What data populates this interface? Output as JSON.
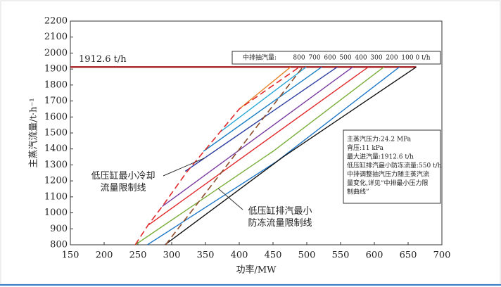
{
  "chart_data": {
    "type": "line",
    "x_label": "功率/MW",
    "y_label": "主蒸汽流量/t·h⁻¹",
    "xlim": [
      150,
      700
    ],
    "xticks": [
      150,
      200,
      250,
      300,
      350,
      400,
      450,
      500,
      550,
      600,
      650,
      700
    ],
    "ylim": [
      800,
      2200
    ],
    "yticks": [
      800,
      900,
      1000,
      1100,
      1200,
      1300,
      1400,
      1500,
      1600,
      1700,
      1800,
      1900,
      2000,
      2100,
      2200
    ],
    "max_flow": 1912.6,
    "max_flow_label": "1912.6 t/h",
    "max_flow_color": "#a01818",
    "legend_title": "中排抽汽量:",
    "series": [
      {
        "name": "800",
        "color": "#e8862a",
        "x": [
          400,
          476
        ],
        "values": [
          1650,
          1912.6
        ]
      },
      {
        "name": "700",
        "color": "#2aa7d8",
        "x": [
          373,
          499
        ],
        "values": [
          1510,
          1912.6
        ]
      },
      {
        "name": "600",
        "color": "#1b7fc4",
        "x": [
          347,
          522
        ],
        "values": [
          1385,
          1912.6
        ]
      },
      {
        "name": "500",
        "color": "#2f3fa0",
        "x": [
          320,
          545
        ],
        "values": [
          1260,
          1912.6
        ]
      },
      {
        "name": "400",
        "color": "#7a3da0",
        "x": [
          286,
          568
        ],
        "values": [
          1040,
          1912.6
        ]
      },
      {
        "name": "300",
        "color": "#e0282a",
        "x": [
          266,
          591
        ],
        "values": [
          925,
          1912.6
        ]
      },
      {
        "name": "200",
        "color": "#7aae3a",
        "x": [
          246,
          450,
          614
        ],
        "values": [
          800,
          1385,
          1912.6
        ]
      },
      {
        "name": "100",
        "color": "#1f78c8",
        "x": [
          264,
          455,
          637
        ],
        "values": [
          800,
          1320,
          1912.6
        ]
      },
      {
        "name": "0 t/h",
        "color": "#111111",
        "x": [
          290,
          465,
          662
        ],
        "values": [
          800,
          1350,
          1912.6
        ]
      }
    ],
    "limit_lines": [
      {
        "label": "低压缸最小冷却\n流量限制线",
        "color": "#e0282a",
        "x": [
          246,
          265,
          286,
          322,
          374,
          400,
          489
        ],
        "values": [
          800,
          923,
          1040,
          1254,
          1518,
          1650,
          1912.6
        ]
      },
      {
        "label": "低压缸排汽最小\n防冻流量限制线",
        "color": "#8b4a2a",
        "x": [
          291,
          494
        ],
        "values": [
          800,
          1912.6
        ]
      }
    ],
    "info": [
      "主蒸汽压力:24.2 MPa",
      "背压:11 kPa",
      "最大进汽量:1912.6 t/h",
      "低压缸排汽最小防冻流量:550 t/h",
      "中排调整抽汽压力随主蒸汽流",
      "量变化,详见“中排最小压力限",
      "制曲线”"
    ]
  }
}
